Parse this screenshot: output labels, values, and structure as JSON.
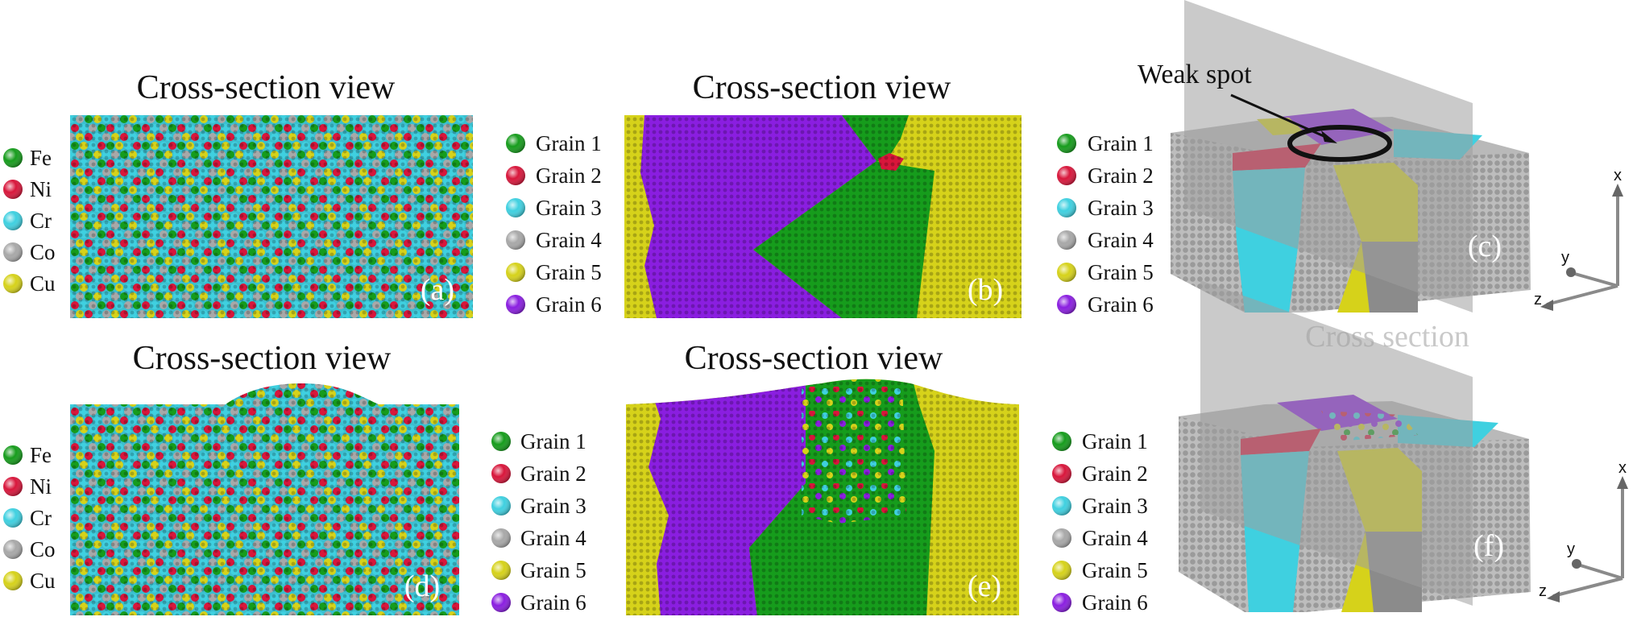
{
  "colors": {
    "Fe": "#169c1c",
    "Ni": "#d8163b",
    "Cr": "#3fd0e0",
    "Co": "#a8a8a8",
    "Cu": "#d6d21a",
    "grain1": "#169c1c",
    "grain2": "#d8163b",
    "grain3": "#3fd0e0",
    "grain4": "#a8a8a8",
    "grain5": "#d6d21a",
    "grain6": "#8a1ee0"
  },
  "panels": {
    "a": {
      "title": "Cross-section view",
      "label": "(a)"
    },
    "b": {
      "title": "Cross-section view",
      "label": "(b)"
    },
    "c": {
      "label": "(c)",
      "annotation": "Weak spot",
      "plane_label": "Cross section"
    },
    "d": {
      "title": "Cross-section view",
      "label": "(d)"
    },
    "e": {
      "title": "Cross-section view",
      "label": "(e)"
    },
    "f": {
      "label": "(f)"
    }
  },
  "legends": {
    "elements": [
      {
        "name": "Fe",
        "color": "#169c1c"
      },
      {
        "name": "Ni",
        "color": "#d8163b"
      },
      {
        "name": "Cr",
        "color": "#3fd0e0"
      },
      {
        "name": "Co",
        "color": "#a8a8a8"
      },
      {
        "name": "Cu",
        "color": "#d6d21a"
      }
    ],
    "grains": [
      {
        "name": "Grain 1",
        "color": "#169c1c"
      },
      {
        "name": "Grain 2",
        "color": "#d8163b"
      },
      {
        "name": "Grain 3",
        "color": "#3fd0e0"
      },
      {
        "name": "Grain 4",
        "color": "#a8a8a8"
      },
      {
        "name": "Grain 5",
        "color": "#d6d21a"
      },
      {
        "name": "Grain 6",
        "color": "#8a1ee0"
      }
    ]
  },
  "axes": {
    "x": "x",
    "y": "y",
    "z": "z"
  }
}
